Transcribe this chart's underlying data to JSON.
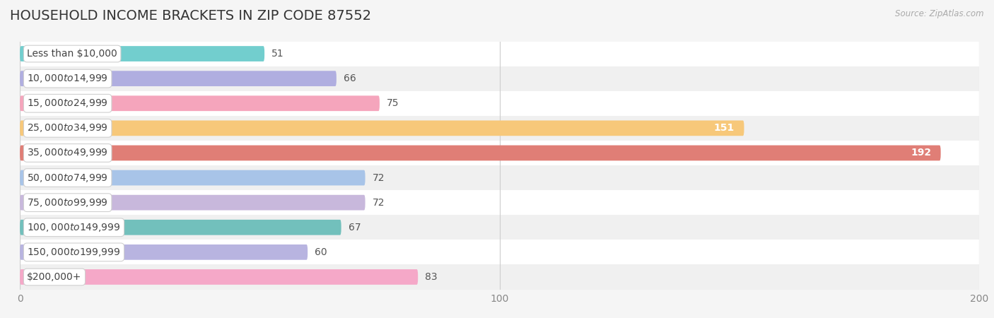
{
  "title": "HOUSEHOLD INCOME BRACKETS IN ZIP CODE 87552",
  "source": "Source: ZipAtlas.com",
  "categories": [
    "Less than $10,000",
    "$10,000 to $14,999",
    "$15,000 to $24,999",
    "$25,000 to $34,999",
    "$35,000 to $49,999",
    "$50,000 to $74,999",
    "$75,000 to $99,999",
    "$100,000 to $149,999",
    "$150,000 to $199,999",
    "$200,000+"
  ],
  "values": [
    51,
    66,
    75,
    151,
    192,
    72,
    72,
    67,
    60,
    83
  ],
  "bar_colors": [
    "#72cece",
    "#b0aee0",
    "#f5a5bc",
    "#f7c87a",
    "#e07e76",
    "#a8c4e8",
    "#c8b8dc",
    "#72c0bc",
    "#b8b4e0",
    "#f5a8c8"
  ],
  "value_inside": [
    false,
    false,
    false,
    true,
    true,
    false,
    false,
    false,
    false,
    false
  ],
  "xlim": [
    0,
    200
  ],
  "xticks": [
    0,
    100,
    200
  ],
  "row_colors": [
    "#ffffff",
    "#f0f0f0"
  ],
  "background_color": "#f5f5f5",
  "title_fontsize": 14,
  "label_fontsize": 10,
  "value_fontsize": 10
}
